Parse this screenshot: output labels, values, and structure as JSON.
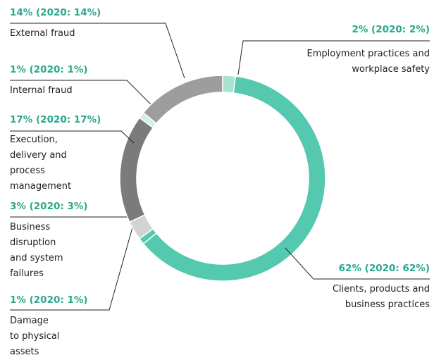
{
  "chart_data": {
    "type": "donut",
    "categories": [
      "Employment practices and\nworkplace safety",
      "Clients, products and\nbusiness practices",
      "Damage\nto physical\nassets",
      "Business\ndisruption\nand system\nfailures",
      "Execution,\ndelivery and\nprocess\nmanagement",
      "Internal fraud",
      "External fraud"
    ],
    "values": [
      2,
      62,
      1,
      3,
      17,
      1,
      14
    ],
    "value_labels": [
      "2% (2020: 2%)",
      "62% (2020: 62%)",
      "1% (2020: 1%)",
      "3% (2020: 3%)",
      "17% (2020: 17%)",
      "1% (2020: 1%)",
      "14% (2020: 14%)"
    ],
    "colors": [
      "#a9e2d3",
      "#55c8b0",
      "#55c8b0",
      "#d3d3d3",
      "#7b7b7b",
      "#d3f0e7",
      "#9d9d9d"
    ]
  }
}
